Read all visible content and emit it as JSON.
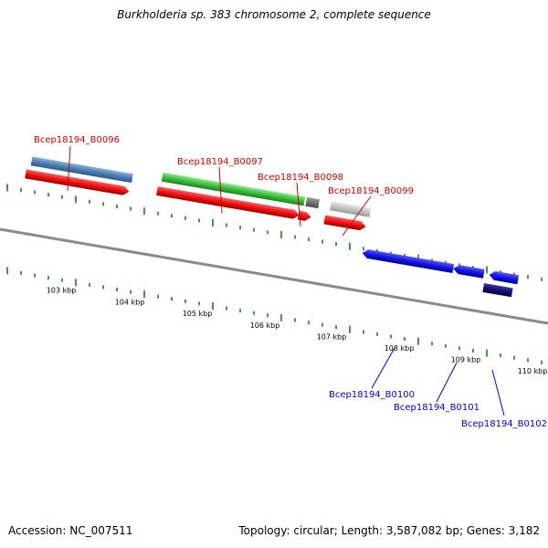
{
  "title": "Burkholderia sp. 383 chromosome 2, complete sequence",
  "footer": {
    "accession": "Accession: NC_007511",
    "summary": "Topology: circular; Length: 3,587,082 bp; Genes: 3,182"
  },
  "colors": {
    "backbone": "#8a8a8a",
    "tick": "#1f7a1f",
    "label_top": "#cc0000",
    "label_bottom": "#0000cc"
  },
  "genes_top": [
    {
      "name": "Bcep18194_B0096",
      "color": "#cc0000"
    },
    {
      "name": "Bcep18194_B0097",
      "color": "#cc0000"
    },
    {
      "name": "Bcep18194_B0098",
      "color": "#cc0000"
    },
    {
      "name": "Bcep18194_B0099",
      "color": "#cc0000"
    }
  ],
  "genes_bottom": [
    {
      "name": "Bcep18194_B0100",
      "color": "#0000cc"
    },
    {
      "name": "Bcep18194_B0101",
      "color": "#0000cc"
    },
    {
      "name": "Bcep18194_B0102",
      "color": "#0000cc"
    }
  ],
  "ticks": [
    "103 kbp",
    "104 kbp",
    "105 kbp",
    "106 kbp",
    "107 kbp",
    "108 kbp",
    "109 kbp",
    "110 kbp"
  ],
  "features": [
    {
      "name": "blue-feature",
      "color": "#4a7fb5"
    },
    {
      "name": "green-feature",
      "color": "#3bbf3b"
    },
    {
      "name": "gray-dark-feature",
      "color": "#707070"
    },
    {
      "name": "gray-light-feature",
      "color": "#c4c4c4"
    },
    {
      "name": "red-cds",
      "color": "#f01010"
    },
    {
      "name": "blue-cds",
      "color": "#1414e6"
    },
    {
      "name": "navy-cds",
      "color": "#10106e"
    }
  ]
}
